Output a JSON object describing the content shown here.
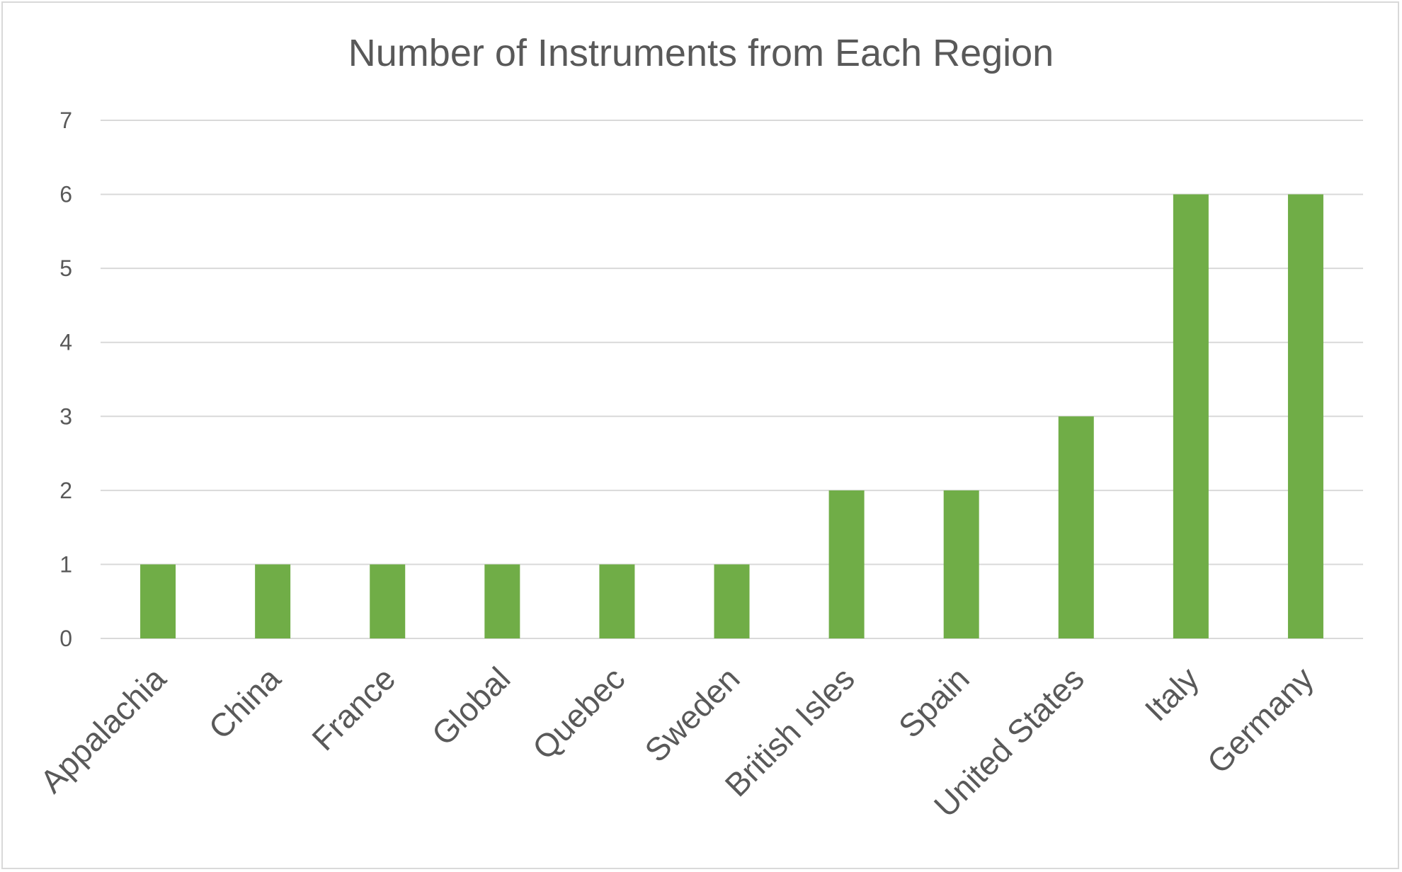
{
  "chart_data": {
    "type": "bar",
    "title": "Number of Instruments from Each Region",
    "xlabel": "",
    "ylabel": "",
    "categories": [
      "Appalachia",
      "China",
      "France",
      "Global",
      "Quebec",
      "Sweden",
      "British Isles",
      "Spain",
      "United States",
      "Italy",
      "Germany"
    ],
    "values": [
      1,
      1,
      1,
      1,
      1,
      1,
      2,
      2,
      3,
      6,
      6
    ],
    "ylim": [
      0,
      7
    ],
    "yticks": [
      0,
      1,
      2,
      3,
      4,
      5,
      6,
      7
    ],
    "grid": true,
    "legend": "none",
    "bar_color": "#70ad47",
    "grid_color": "#d9d9d9",
    "text_color": "#595959"
  }
}
